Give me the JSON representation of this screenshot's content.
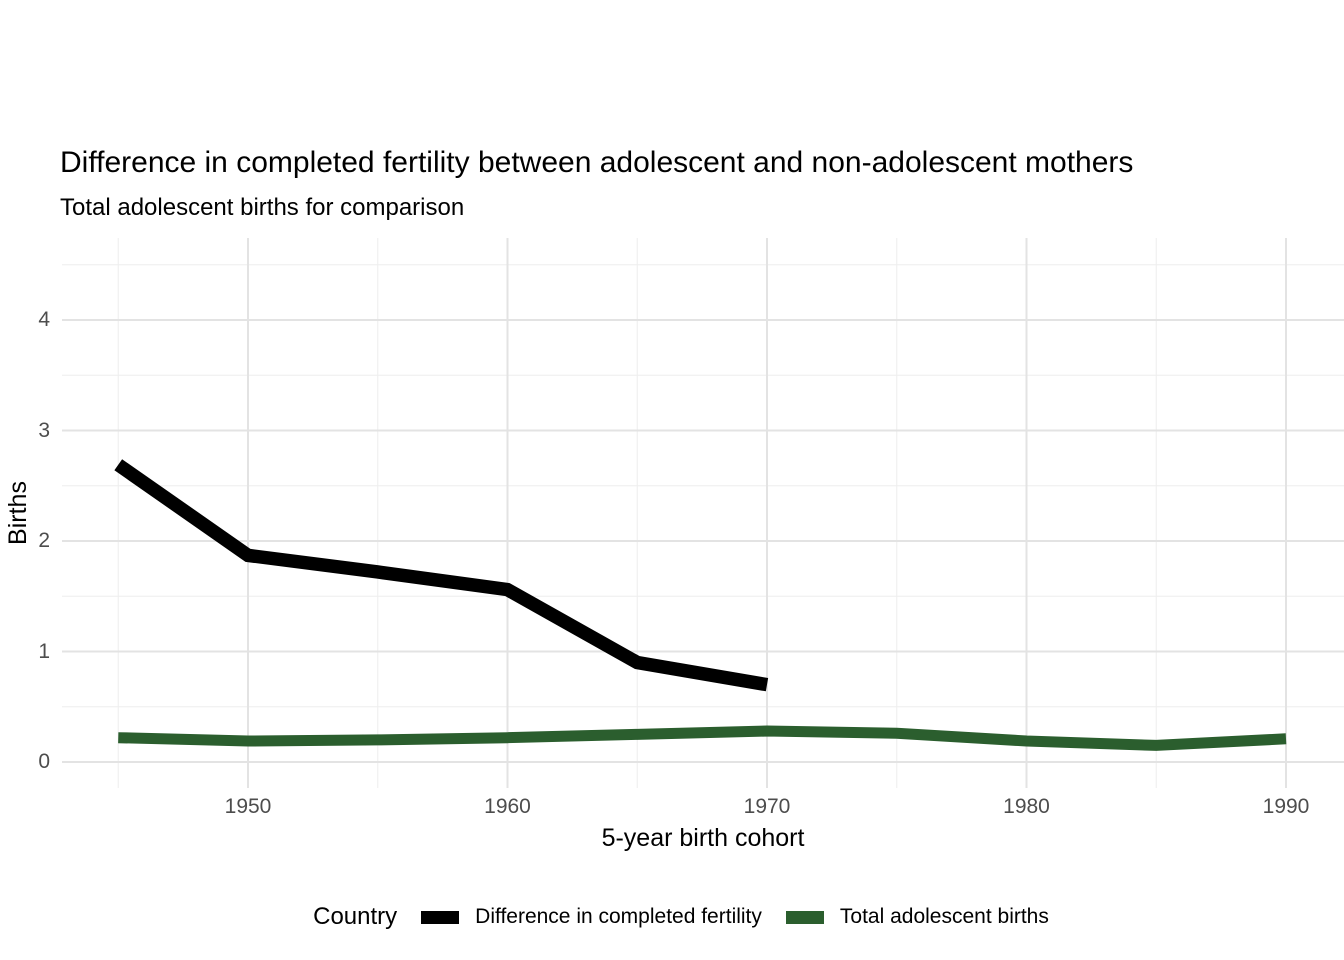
{
  "title": "Difference in completed fertility between adolescent and non-adolescent mothers",
  "subtitle": "Total adolescent births for comparison",
  "chart_data": {
    "type": "line",
    "title": "Difference in completed fertility between adolescent and non-adolescent mothers",
    "subtitle": "Total adolescent births for comparison",
    "xlabel": "5-year birth cohort",
    "ylabel": "Births",
    "legend_title": "Country",
    "legend_position": "bottom",
    "grid": true,
    "x_range_px_note": "x axis in years, major ticks each decade",
    "x_ticks": [
      1950,
      1960,
      1970,
      1980,
      1990
    ],
    "x_minor": [
      1945,
      1955,
      1965,
      1975,
      1985
    ],
    "y_ticks": [
      0,
      1,
      2,
      3,
      4
    ],
    "y_minor": [
      0.5,
      1.5,
      2.5,
      3.5,
      4.5
    ],
    "ylim": [
      -0.24,
      4.74
    ],
    "xlim": [
      1942.8,
      1992.3
    ],
    "series": [
      {
        "name": "Difference in completed fertility",
        "color": "#000000",
        "x": [
          1945,
          1950,
          1955,
          1960,
          1965,
          1970
        ],
        "values": [
          2.69,
          1.87,
          1.72,
          1.56,
          0.9,
          0.7
        ]
      },
      {
        "name": "Total adolescent births",
        "color": "#2b5e2e",
        "x": [
          1945,
          1950,
          1955,
          1960,
          1965,
          1970,
          1975,
          1980,
          1985,
          1990
        ],
        "values": [
          0.22,
          0.19,
          0.2,
          0.22,
          0.25,
          0.28,
          0.26,
          0.19,
          0.15,
          0.21
        ]
      }
    ]
  },
  "colors": {
    "grid_major": "#e3e3e3",
    "grid_minor": "#eeeeee",
    "tick_text": "#4d4d4d",
    "text": "#000000",
    "background": "#ffffff"
  }
}
